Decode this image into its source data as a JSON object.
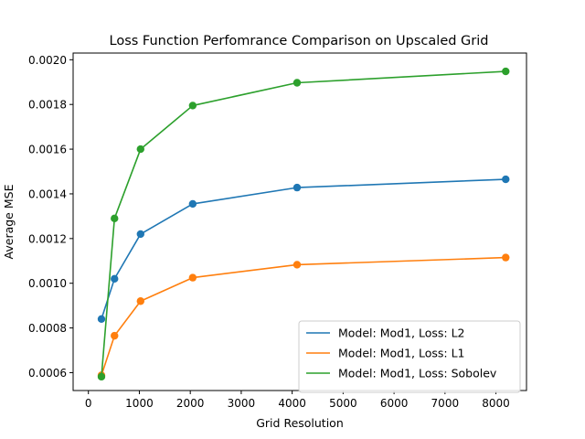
{
  "chart_data": {
    "type": "line",
    "title": "Loss Function Perfomrance Comparison on Upscaled Grid",
    "xlabel": "Grid Resolution",
    "ylabel": "Average MSE",
    "xlim": [
      -300,
      8600
    ],
    "ylim": [
      0.00052,
      0.00203
    ],
    "x_ticks": [
      0,
      1000,
      2000,
      3000,
      4000,
      5000,
      6000,
      7000,
      8000
    ],
    "x_tick_labels": [
      "0",
      "1000",
      "2000",
      "3000",
      "4000",
      "5000",
      "6000",
      "7000",
      "8000"
    ],
    "y_ticks": [
      0.0006,
      0.0008,
      0.001,
      0.0012,
      0.0014,
      0.0016,
      0.0018,
      0.002
    ],
    "y_tick_labels": [
      "0.0006",
      "0.0008",
      "0.0010",
      "0.0012",
      "0.0014",
      "0.0016",
      "0.0018",
      "0.0020"
    ],
    "grid": false,
    "legend_position": "lower-right",
    "x": [
      256,
      512,
      1024,
      2048,
      4096,
      8192
    ],
    "series": [
      {
        "name": "Model: Mod1, Loss: L2",
        "color": "#1f77b4",
        "marker": "circle",
        "values": [
          0.00084,
          0.00102,
          0.00122,
          0.001355,
          0.001428,
          0.001465
        ]
      },
      {
        "name": "Model: Mod1, Loss: L1",
        "color": "#ff7f0e",
        "marker": "circle",
        "values": [
          0.000588,
          0.000765,
          0.00092,
          0.001025,
          0.001083,
          0.001115
        ]
      },
      {
        "name": "Model: Mod1, Loss: Sobolev",
        "color": "#2ca02c",
        "marker": "circle",
        "values": [
          0.000582,
          0.00129,
          0.0016,
          0.001795,
          0.001897,
          0.001948
        ]
      }
    ]
  }
}
